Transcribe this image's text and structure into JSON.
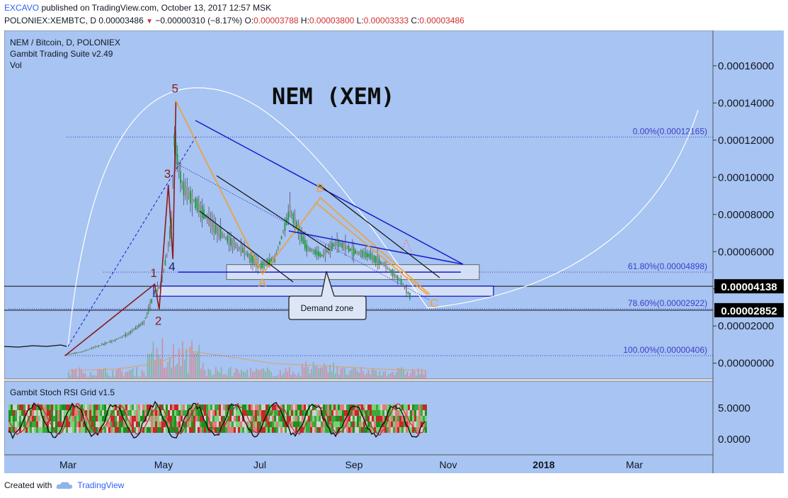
{
  "header": {
    "author": "EXCAVO",
    "published": " published on TradingView.com, October 13, 2017 12:57 MSK",
    "symbol": "POLONIEX:XEMBTC, D",
    "last": "0.00003486",
    "change": "−0.00000310 (−8.17%)",
    "o_label": "O:",
    "o": "0.00003788",
    "h_label": "H:",
    "h": "0.00003800",
    "l_label": "L:",
    "l": "0.00003333",
    "c_label": "C:",
    "c": "0.00003486"
  },
  "legend": {
    "line1": "NEM / Bitcoin, D, POLONIEX",
    "line2": "Gambit Trading Suite v2.49",
    "line3": "Vol"
  },
  "chart_title": "NEM  (XEM)",
  "demand_label": "Demand zone",
  "oscillator_label": "Gambit Stoch RSI Grid v1.5",
  "footer": {
    "created": "Created with",
    "brand": "TradingView"
  },
  "colors": {
    "background": "#a7c4f2",
    "up": "#1b9c3a",
    "down": "#888888",
    "wave": "#8b1a1a",
    "abc": "#f0a030",
    "channel": "#1a1acc",
    "fib": "#3d3dcc"
  },
  "chart_data": {
    "type": "line",
    "title": "NEM  (XEM)",
    "x": [
      "Feb 27",
      "Mar 10",
      "Mar 20",
      "Apr 1",
      "Apr 10",
      "Apr 20",
      "Apr 27",
      "May 1",
      "May 5",
      "May 8",
      "May 10",
      "May 15",
      "May 25",
      "Jun 5",
      "Jun 15",
      "Jun 25",
      "Jul 5",
      "Jul 15",
      "Jul 25",
      "Aug 5",
      "Aug 15",
      "Aug 25",
      "Sep 5",
      "Sep 15",
      "Sep 25",
      "Oct 5",
      "Oct 13"
    ],
    "series": [
      {
        "values": [
          4.5e-06,
          6e-06,
          9e-06,
          1.25e-05,
          1.6e-05,
          2.2e-05,
          3.8e-05,
          4.2e-05,
          5.8e-05,
          7.5e-05,
          0.00012,
          9.5e-05,
          8.5e-05,
          7.3e-05,
          6.6e-05,
          6e-05,
          5.2e-05,
          5.6e-05,
          8.2e-05,
          6.2e-05,
          5.8e-05,
          6.5e-05,
          6e-05,
          5.8e-05,
          5.3e-05,
          4.5e-05,
          3.486e-05
        ]
      }
    ],
    "y_ticks": [
      "0.00016000",
      "0.00014000",
      "0.00012000",
      "0.00010000",
      "0.00008000",
      "0.00006000",
      "0.00004000",
      "0.00002000",
      "0.00000000"
    ],
    "y_tick_values": [
      0.00016,
      0.00014,
      0.00012,
      0.0001,
      8e-05,
      6e-05,
      4e-05,
      2e-05,
      0.0
    ],
    "ylim": [
      -8.5e-06,
      0.000179
    ],
    "x_ticks": [
      "Mar",
      "May",
      "Jul",
      "Sep",
      "Nov",
      "2018",
      "Mar"
    ],
    "price_marks": [
      {
        "label": "0.00004138",
        "value": 4.138e-05
      },
      {
        "label": "0.00002852",
        "value": 2.852e-05
      }
    ],
    "fib_levels": [
      {
        "label": "0.00%(0.00012165)",
        "value": 0.00012165
      },
      {
        "label": "61.80%(0.00004898)",
        "value": 4.898e-05
      },
      {
        "label": "78.60%(0.00002922)",
        "value": 2.922e-05
      },
      {
        "label": "100.00%(0.00000406)",
        "value": 4.06e-06
      }
    ],
    "wave_points": [
      {
        "label": "1",
        "date": "Apr 27",
        "value": 4.25e-05
      },
      {
        "label": "2",
        "date": "Apr 30",
        "value": 2.9e-05
      },
      {
        "label": "3",
        "date": "May 6",
        "value": 9.6e-05
      },
      {
        "label": "4",
        "date": "May 9",
        "value": 5.6e-05
      },
      {
        "label": "5",
        "date": "May 11",
        "value": 0.000141
      }
    ],
    "abc_points": [
      {
        "label": "A",
        "date": "Jul 7",
        "value": 4.8e-05
      },
      {
        "label": "B",
        "date": "Aug 14",
        "value": 8.9e-05
      },
      {
        "label": "C",
        "date": "Oct 25",
        "value": 3.7e-05
      }
    ],
    "osc_ticks": [
      "5.0000",
      "0.0000"
    ],
    "osc_tick_values": [
      5,
      0
    ]
  }
}
